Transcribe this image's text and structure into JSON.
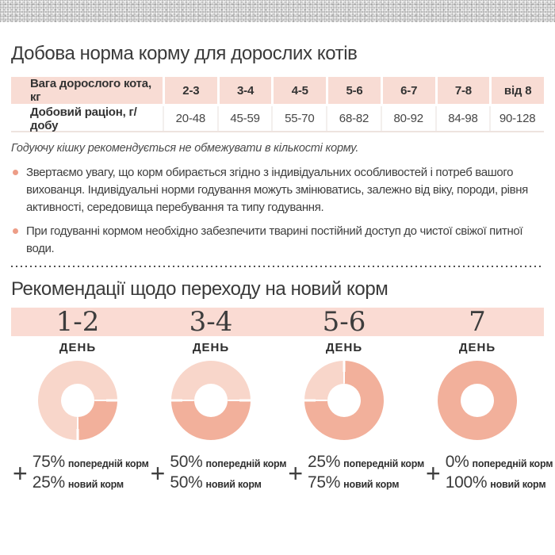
{
  "colors": {
    "table_header_bg": "#f8dcd4",
    "banner_bg": "#fadbd3",
    "donut_prev": "#f8d6ca",
    "donut_new": "#f2b09b",
    "bullet_dot": "#ed9d87",
    "text_dark": "#3a3a3a"
  },
  "section1": {
    "title": "Добова норма корму для дорослих котів",
    "table": {
      "rows": [
        {
          "label": "Вага дорослого кота, кг",
          "values": [
            "2-3",
            "3-4",
            "4-5",
            "5-6",
            "6-7",
            "7-8",
            "від 8"
          ]
        },
        {
          "label": "Добовий раціон, г/добу",
          "values": [
            "20-48",
            "45-59",
            "55-70",
            "68-82",
            "80-92",
            "84-98",
            "90-128"
          ]
        }
      ]
    },
    "note": "Годуючу кішку рекомендується не обмежувати в кількості корму.",
    "bullets": [
      "Звертаємо увагу, що корм обирається згідно з індивідуальних особливостей і потреб вашого вихованця. Індивідуальні норми годування можуть змінюватись, залежно від віку, породи, рівня активності, середовища перебування та типу годування.",
      "При годуванні кормом необхідно забезпечити тварині постійний доступ до чистої свіжої питної води."
    ]
  },
  "section2": {
    "title": "Рекомендації щодо переходу на новий корм",
    "day_label": "ДЕНЬ",
    "plus_sign": "+",
    "labels": {
      "prev": "попередній корм",
      "new": "новий корм"
    },
    "steps": [
      {
        "days": "1-2",
        "prev_pct": "75%",
        "new_pct": "25%"
      },
      {
        "days": "3-4",
        "prev_pct": "50%",
        "new_pct": "50%"
      },
      {
        "days": "5-6",
        "prev_pct": "25%",
        "new_pct": "75%"
      },
      {
        "days": "7",
        "prev_pct": "0%",
        "new_pct": "100%"
      }
    ]
  },
  "chart_data": [
    {
      "type": "pie",
      "title": "День 1-2",
      "labels": [
        "попередній корм",
        "новий корм"
      ],
      "values": [
        75,
        25
      ],
      "colors": [
        "#f8d6ca",
        "#f2b09b"
      ],
      "hole": 0.42,
      "new_arc": {
        "from": 90,
        "to": 180
      }
    },
    {
      "type": "pie",
      "title": "День 3-4",
      "labels": [
        "попередній корм",
        "новий корм"
      ],
      "values": [
        50,
        50
      ],
      "colors": [
        "#f8d6ca",
        "#f2b09b"
      ],
      "hole": 0.42,
      "new_arc": {
        "from": 90,
        "to": 270
      }
    },
    {
      "type": "pie",
      "title": "День 5-6",
      "labels": [
        "попередній корм",
        "новий корм"
      ],
      "values": [
        25,
        75
      ],
      "colors": [
        "#f8d6ca",
        "#f2b09b"
      ],
      "hole": 0.42,
      "new_arc": {
        "from": 0,
        "to": 270
      }
    },
    {
      "type": "pie",
      "title": "День 7",
      "labels": [
        "попередній корм",
        "новий корм"
      ],
      "values": [
        0,
        100
      ],
      "colors": [
        "#f8d6ca",
        "#f2b09b"
      ],
      "hole": 0.42,
      "new_arc": {
        "from": 0,
        "to": 360
      }
    }
  ]
}
